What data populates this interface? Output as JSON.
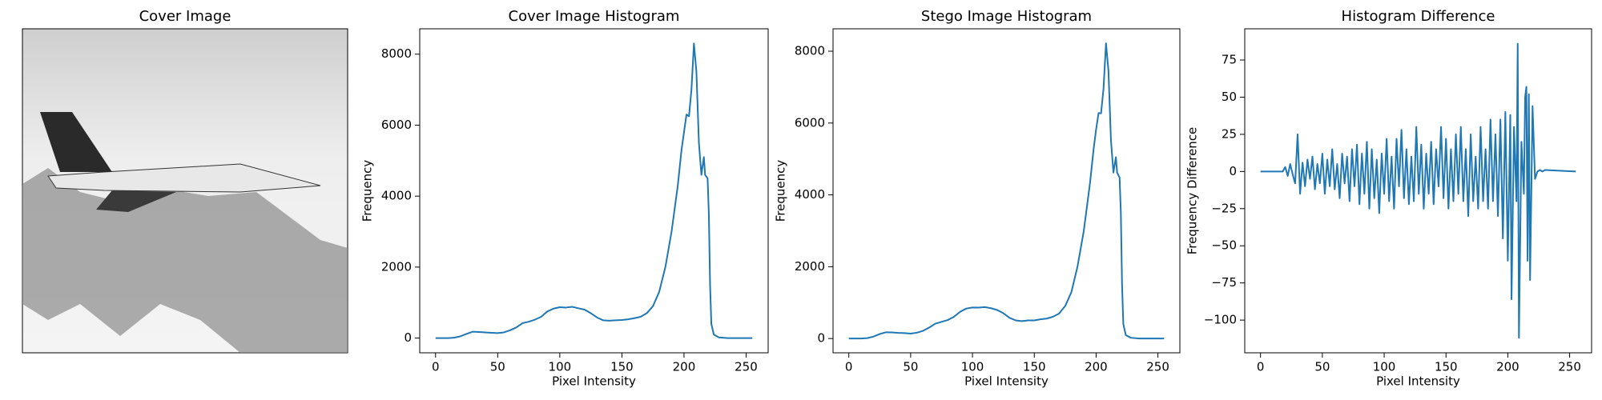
{
  "chart_data": [
    {
      "type": "image",
      "title": "Cover Image"
    },
    {
      "type": "line",
      "title": "Cover Image Histogram",
      "x_label": "Pixel Intensity",
      "y_label": "Frequency",
      "color": "#1f77b4",
      "x": [
        0,
        10,
        15,
        20,
        25,
        30,
        35,
        40,
        45,
        50,
        55,
        60,
        65,
        70,
        75,
        80,
        85,
        90,
        95,
        100,
        105,
        110,
        115,
        120,
        125,
        130,
        135,
        140,
        145,
        150,
        155,
        160,
        165,
        170,
        175,
        180,
        185,
        190,
        195,
        198,
        200,
        202,
        204,
        206,
        208,
        210,
        212,
        214,
        216,
        217,
        219,
        220,
        221,
        222,
        224,
        228,
        235,
        255
      ],
      "values": [
        0,
        0,
        10,
        50,
        120,
        180,
        170,
        160,
        150,
        140,
        160,
        220,
        300,
        420,
        460,
        520,
        600,
        750,
        830,
        870,
        860,
        880,
        840,
        800,
        700,
        580,
        500,
        490,
        500,
        510,
        530,
        560,
        600,
        700,
        900,
        1300,
        2000,
        3000,
        4300,
        5300,
        5800,
        6300,
        6250,
        7000,
        8300,
        7500,
        5500,
        4600,
        5100,
        4600,
        4500,
        3500,
        1500,
        400,
        100,
        20,
        0,
        0
      ],
      "xlim": [
        -12.75,
        267.75
      ],
      "ylim": [
        -415,
        8715
      ],
      "xticks": [
        0,
        50,
        100,
        150,
        200,
        250
      ],
      "yticks": [
        0,
        2000,
        4000,
        6000,
        8000
      ]
    },
    {
      "type": "line",
      "title": "Stego Image Histogram",
      "x_label": "Pixel Intensity",
      "y_label": "Frequency",
      "color": "#1f77b4",
      "x": [
        0,
        10,
        15,
        20,
        25,
        30,
        35,
        40,
        45,
        50,
        55,
        60,
        65,
        70,
        75,
        80,
        85,
        90,
        95,
        100,
        105,
        110,
        115,
        120,
        125,
        130,
        135,
        140,
        145,
        150,
        155,
        160,
        165,
        170,
        175,
        180,
        185,
        190,
        195,
        198,
        200,
        202,
        204,
        206,
        208,
        210,
        212,
        214,
        216,
        217,
        219,
        220,
        221,
        222,
        224,
        228,
        235,
        255
      ],
      "values": [
        0,
        0,
        12,
        55,
        125,
        175,
        172,
        158,
        152,
        138,
        162,
        215,
        305,
        415,
        465,
        515,
        605,
        745,
        835,
        865,
        862,
        875,
        845,
        795,
        705,
        575,
        505,
        485,
        505,
        505,
        535,
        555,
        605,
        695,
        905,
        1290,
        2010,
        2990,
        4310,
        5280,
        5820,
        6280,
        6270,
        6960,
        8220,
        7450,
        5530,
        4620,
        5050,
        4620,
        4480,
        3520,
        1480,
        410,
        95,
        22,
        0,
        0
      ],
      "xlim": [
        -12.75,
        267.75
      ],
      "ylim": [
        -397,
        8624
      ],
      "xticks": [
        0,
        50,
        100,
        150,
        200,
        250
      ],
      "yticks": [
        0,
        2000,
        4000,
        6000,
        8000
      ]
    },
    {
      "type": "line",
      "title": "Histogram Difference",
      "x_label": "Pixel Intensity",
      "y_label": "Frequency Difference",
      "color": "#1f77b4",
      "x": [
        0,
        18,
        20,
        22,
        24,
        26,
        28,
        30,
        32,
        34,
        36,
        38,
        40,
        42,
        44,
        46,
        48,
        50,
        52,
        54,
        56,
        58,
        60,
        62,
        64,
        66,
        68,
        70,
        72,
        74,
        76,
        78,
        80,
        82,
        84,
        86,
        88,
        90,
        92,
        94,
        96,
        98,
        100,
        102,
        104,
        106,
        108,
        110,
        112,
        114,
        116,
        118,
        120,
        122,
        124,
        126,
        128,
        130,
        132,
        134,
        136,
        138,
        140,
        142,
        144,
        146,
        148,
        150,
        152,
        154,
        156,
        158,
        160,
        162,
        164,
        166,
        168,
        170,
        172,
        174,
        176,
        178,
        180,
        182,
        184,
        186,
        188,
        190,
        192,
        194,
        196,
        198,
        200,
        202,
        203,
        205,
        207,
        208,
        209,
        211,
        213,
        214,
        215,
        216,
        217,
        218,
        220,
        222,
        224,
        226,
        228,
        230,
        255
      ],
      "values": [
        0,
        0,
        3,
        -3,
        5,
        -2,
        -8,
        25,
        -15,
        6,
        -10,
        8,
        -5,
        10,
        -12,
        5,
        -8,
        12,
        -15,
        8,
        -10,
        15,
        -12,
        5,
        -18,
        12,
        -8,
        10,
        -20,
        15,
        -10,
        18,
        -22,
        12,
        -15,
        20,
        -25,
        15,
        -18,
        8,
        -28,
        12,
        -15,
        22,
        -20,
        10,
        -25,
        22,
        -10,
        28,
        -18,
        15,
        -22,
        10,
        -20,
        30,
        -15,
        18,
        -25,
        12,
        -15,
        20,
        -22,
        15,
        -10,
        30,
        -18,
        22,
        -25,
        15,
        -20,
        25,
        -15,
        30,
        -20,
        15,
        -30,
        25,
        -20,
        10,
        -25,
        30,
        -20,
        15,
        -25,
        35,
        -20,
        25,
        -30,
        35,
        -45,
        40,
        -60,
        38,
        -86,
        30,
        -20,
        86,
        -112,
        20,
        -15,
        50,
        57,
        -60,
        52,
        -73,
        44,
        -5,
        0,
        1,
        0,
        1,
        0
      ],
      "xlim": [
        -12.75,
        267.75
      ],
      "ylim": [
        -122,
        96
      ],
      "xticks": [
        0,
        50,
        100,
        150,
        200,
        250
      ],
      "yticks": [
        {
          "value": -100,
          "label": "−100"
        },
        {
          "value": -75,
          "label": "−75"
        },
        {
          "value": -50,
          "label": "−50"
        },
        {
          "value": -25,
          "label": "−25"
        },
        0,
        25,
        50,
        75
      ]
    }
  ]
}
